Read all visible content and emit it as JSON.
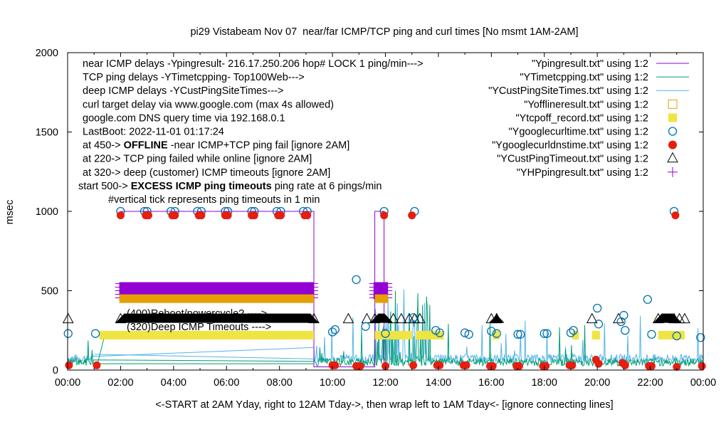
{
  "chart_data": {
    "type": "scatter",
    "title": "pi29 Vistabeam Nov 07  near/far ICMP/TCP ping and curl times [No msmt 1AM-2AM]",
    "xlabel": "<-START at 2AM Yday, right to 12AM Tday->, then wrap left to 1AM Tday<- [ignore connecting lines]",
    "ylabel": "msec",
    "xlim": [
      0,
      24
    ],
    "ylim": [
      0,
      2000
    ],
    "x_ticks": [
      "00:00",
      "02:00",
      "04:00",
      "06:00",
      "08:00",
      "10:00",
      "12:00",
      "14:00",
      "16:00",
      "18:00",
      "20:00",
      "22:00",
      "00:00"
    ],
    "y_ticks": [
      "0",
      "500",
      "1000",
      "1500",
      "2000"
    ],
    "notes": [
      {
        "text": "near ICMP delays -Ypingresult- 216.17.250.206 hop# LOCK 1 ping/min--->"
      },
      {
        "text": "TCP ping delays -YTimetcpping- Top100Web--->"
      },
      {
        "text": "deep ICMP delays -YCustPingSiteTimes--->"
      },
      {
        "text": "curl target delay via www.google.com (max 4s allowed)"
      },
      {
        "text": "google.com DNS query time via 192.168.0.1"
      },
      {
        "text": "LastBoot: 2022-11-01 01:17:24"
      },
      {
        "prefix": "at 450-> ",
        "bold": "OFFLINE",
        "suffix": " -near ICMP+TCP ping fail [ignore 2AM]"
      },
      {
        "text": "at 220-> TCP ping failed while online [ignore 2AM]"
      },
      {
        "text": "at 320-> deep (customer) ICMP timeouts [ignore 2AM]"
      },
      {
        "prefix": "start 500-> ",
        "bold": "EXCESS ICMP ping timeouts",
        "suffix": " ping rate at 6 pings/min"
      },
      {
        "text": "#vertical tick represents ping timeouts in 1 min"
      }
    ],
    "annotations": [
      "(400)Reboot/powercycle? ---->",
      "(320)Deep ICMP Timeouts ---->"
    ],
    "legend_position": "top-right",
    "series": [
      {
        "name": "\"Ypingresult.txt\" using 1:2",
        "style": "line",
        "color": "#9400d3",
        "points": [
          [
            2.0,
            1000
          ],
          [
            9.3,
            1000
          ],
          [
            9.3,
            20
          ],
          [
            11.6,
            20
          ],
          [
            11.6,
            1000
          ],
          [
            11.95,
            1000
          ],
          [
            11.95,
            20
          ]
        ]
      },
      {
        "name": "\"YTimetcpping.txt\" using 1:2",
        "style": "line",
        "color": "#009e73",
        "baseline": 35,
        "noise": true
      },
      {
        "name": "\"YCustPingSiteTimes.txt\" using 1:2",
        "style": "line",
        "color": "#56b4e9",
        "baseline": 60,
        "noise": true
      },
      {
        "name": "\"Yofflineresult.txt\" using 1:2",
        "style": "bar-segment",
        "color": "#e69f00",
        "segments": [
          [
            1.95,
            9.3,
            450
          ],
          [
            11.6,
            12.1,
            450
          ]
        ]
      },
      {
        "name": "\"Ytcpoff_record.txt\" using 1:2",
        "style": "bar-segment",
        "color": "#f0e442",
        "segments": [
          [
            1.2,
            9.3,
            220
          ],
          [
            11.6,
            12.8,
            220
          ],
          [
            12.8,
            13.0,
            220
          ],
          [
            13.15,
            14.2,
            220
          ],
          [
            16.05,
            16.3,
            220
          ],
          [
            19.05,
            19.3,
            220
          ],
          [
            19.8,
            20.1,
            220
          ],
          [
            22.3,
            23.3,
            220
          ]
        ]
      },
      {
        "name": "\"Ygooglecurltime.txt\" using 1:2",
        "style": "open-circle",
        "color": "#0072b2",
        "points": [
          [
            0.02,
            230
          ],
          [
            1.05,
            230
          ],
          [
            2.0,
            1000
          ],
          [
            2.9,
            1000
          ],
          [
            3.0,
            1000
          ],
          [
            3.9,
            1000
          ],
          [
            4.05,
            1000
          ],
          [
            4.9,
            1000
          ],
          [
            5.05,
            1000
          ],
          [
            5.95,
            1000
          ],
          [
            6.05,
            1000
          ],
          [
            6.95,
            1000
          ],
          [
            7.05,
            1000
          ],
          [
            7.9,
            1000
          ],
          [
            8.05,
            1000
          ],
          [
            8.9,
            1000
          ],
          [
            9.05,
            1000
          ],
          [
            10.0,
            240
          ],
          [
            10.1,
            255
          ],
          [
            10.9,
            570
          ],
          [
            11.25,
            275
          ],
          [
            11.95,
            1000
          ],
          [
            12.0,
            230
          ],
          [
            13.1,
            1000
          ],
          [
            13.05,
            330
          ],
          [
            13.9,
            250
          ],
          [
            14.05,
            235
          ],
          [
            15.0,
            235
          ],
          [
            15.15,
            225
          ],
          [
            16.0,
            245
          ],
          [
            16.2,
            230
          ],
          [
            17.0,
            225
          ],
          [
            17.1,
            225
          ],
          [
            18.0,
            230
          ],
          [
            18.1,
            230
          ],
          [
            19.0,
            235
          ],
          [
            19.1,
            250
          ],
          [
            20.0,
            390
          ],
          [
            20.05,
            290
          ],
          [
            20.9,
            305
          ],
          [
            21.0,
            345
          ],
          [
            21.05,
            250
          ],
          [
            21.9,
            445
          ],
          [
            22.05,
            225
          ],
          [
            22.9,
            1000
          ],
          [
            23.0,
            215
          ],
          [
            23.9,
            205
          ]
        ]
      },
      {
        "name": "\"Ygooglecurldnstime.txt\" using 1:2",
        "style": "filled-circle",
        "color": "#e51e10",
        "points": [
          [
            0.05,
            30
          ],
          [
            1.1,
            30
          ],
          [
            2.0,
            975
          ],
          [
            2.95,
            975
          ],
          [
            3.05,
            975
          ],
          [
            3.95,
            975
          ],
          [
            4.05,
            975
          ],
          [
            4.95,
            975
          ],
          [
            5.05,
            975
          ],
          [
            5.95,
            975
          ],
          [
            6.05,
            975
          ],
          [
            6.95,
            975
          ],
          [
            7.05,
            975
          ],
          [
            7.95,
            975
          ],
          [
            8.05,
            975
          ],
          [
            8.95,
            975
          ],
          [
            9.05,
            975
          ],
          [
            10.0,
            30
          ],
          [
            10.1,
            30
          ],
          [
            10.9,
            25
          ],
          [
            11.05,
            25
          ],
          [
            11.95,
            975
          ],
          [
            12.0,
            25
          ],
          [
            13.0,
            975
          ],
          [
            13.05,
            30
          ],
          [
            13.95,
            30
          ],
          [
            14.05,
            30
          ],
          [
            14.95,
            30
          ],
          [
            15.05,
            30
          ],
          [
            15.95,
            25
          ],
          [
            16.05,
            25
          ],
          [
            16.95,
            25
          ],
          [
            17.05,
            25
          ],
          [
            17.95,
            25
          ],
          [
            18.05,
            25
          ],
          [
            18.95,
            30
          ],
          [
            19.05,
            30
          ],
          [
            19.95,
            65
          ],
          [
            20.05,
            40
          ],
          [
            20.95,
            45
          ],
          [
            21.05,
            30
          ],
          [
            21.95,
            25
          ],
          [
            22.05,
            25
          ],
          [
            22.95,
            975
          ],
          [
            23.0,
            20
          ],
          [
            23.95,
            25
          ]
        ]
      },
      {
        "name": "\"YCustPingTimeout.txt\" using 1:2",
        "style": "open-triangle",
        "color": "#000000",
        "points": [
          [
            0.02,
            320
          ],
          [
            2.0,
            320
          ],
          [
            9.3,
            320
          ],
          [
            10.6,
            320
          ],
          [
            11.3,
            320
          ],
          [
            11.6,
            320
          ],
          [
            12.3,
            320
          ],
          [
            12.6,
            320
          ],
          [
            12.9,
            320
          ],
          [
            13.1,
            320
          ],
          [
            13.3,
            320
          ],
          [
            16.0,
            320
          ],
          [
            16.2,
            320
          ],
          [
            19.8,
            320
          ],
          [
            20.8,
            320
          ],
          [
            22.3,
            320
          ],
          [
            22.9,
            320
          ],
          [
            23.1,
            320
          ],
          [
            23.3,
            320
          ]
        ],
        "dense_ranges": [
          [
            2.0,
            9.3,
            320
          ],
          [
            11.6,
            12.1,
            320
          ],
          [
            16.1,
            16.3,
            320
          ],
          [
            22.3,
            23.0,
            320
          ]
        ]
      },
      {
        "name": "\"YHPpingresult.txt\" using 1:2",
        "style": "plus",
        "color": "#9400d3",
        "dense_ranges": [
          [
            1.95,
            9.3,
            500
          ],
          [
            11.55,
            12.1,
            500
          ]
        ]
      }
    ]
  }
}
